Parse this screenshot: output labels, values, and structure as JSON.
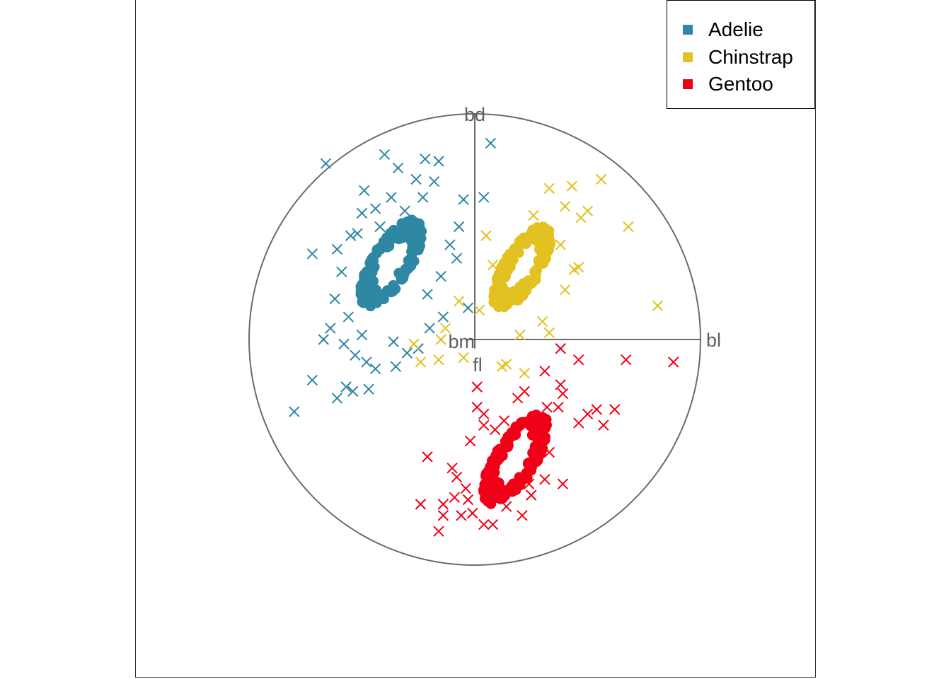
{
  "chart_data": {
    "type": "scatter",
    "title": "",
    "projection_axes": [
      {
        "name": "bl",
        "dx": 1.0,
        "dy": 0.0
      },
      {
        "name": "bd",
        "dx": 0.0,
        "dy": 1.0
      },
      {
        "name": "bm",
        "dx": -0.04,
        "dy": 0.0
      },
      {
        "name": "fl",
        "dx": 0.0,
        "dy": -0.04
      }
    ],
    "legend": {
      "position": "top-right",
      "entries": [
        "Adelie",
        "Chinstrap",
        "Gentoo"
      ]
    },
    "series": [
      {
        "name": "Adelie",
        "color": "#2E87A3",
        "core": {
          "cx": -0.37,
          "cy": 0.34,
          "rx": 0.085,
          "ry": 0.22,
          "angle_deg": 32,
          "count": 180
        },
        "outliers": [
          [
            -0.66,
            0.78
          ],
          [
            -0.4,
            0.82
          ],
          [
            -0.34,
            0.76
          ],
          [
            -0.22,
            0.8
          ],
          [
            -0.26,
            0.71
          ],
          [
            -0.16,
            0.79
          ],
          [
            -0.18,
            0.7
          ],
          [
            -0.49,
            0.66
          ],
          [
            -0.44,
            0.58
          ],
          [
            -0.31,
            0.57
          ],
          [
            -0.23,
            0.63
          ],
          [
            -0.05,
            0.62
          ],
          [
            -0.5,
            0.56
          ],
          [
            0.04,
            0.63
          ],
          [
            -0.72,
            0.38
          ],
          [
            -0.61,
            0.4
          ],
          [
            -0.55,
            0.46
          ],
          [
            -0.59,
            0.3
          ],
          [
            -0.07,
            0.5
          ],
          [
            -0.11,
            0.42
          ],
          [
            -0.15,
            0.28
          ],
          [
            -0.03,
            0.14
          ],
          [
            -0.67,
            0.0
          ],
          [
            -0.58,
            -0.02
          ],
          [
            -0.53,
            -0.07
          ],
          [
            -0.48,
            -0.1
          ],
          [
            -0.36,
            -0.01
          ],
          [
            -0.3,
            -0.06
          ],
          [
            -0.44,
            -0.13
          ],
          [
            -0.72,
            -0.18
          ],
          [
            -0.57,
            -0.21
          ],
          [
            -0.54,
            -0.23
          ],
          [
            -0.47,
            -0.22
          ],
          [
            -0.61,
            -0.26
          ],
          [
            -0.8,
            -0.32
          ],
          [
            -0.35,
            -0.12
          ],
          [
            -0.25,
            -0.04
          ],
          [
            -0.2,
            0.05
          ],
          [
            -0.14,
            0.1
          ],
          [
            -0.62,
            0.18
          ],
          [
            -0.56,
            0.1
          ],
          [
            0.07,
            0.87
          ],
          [
            -0.08,
            0.36
          ],
          [
            -0.21,
            0.2
          ],
          [
            -0.26,
            0.51
          ],
          [
            -0.37,
            0.63
          ],
          [
            -0.52,
            0.47
          ],
          [
            -0.42,
            0.5
          ],
          [
            -0.64,
            0.05
          ],
          [
            -0.5,
            0.02
          ]
        ]
      },
      {
        "name": "Chinstrap",
        "color": "#E2C121",
        "core": {
          "cx": 0.21,
          "cy": 0.32,
          "rx": 0.08,
          "ry": 0.21,
          "angle_deg": 32,
          "count": 180
        },
        "outliers": [
          [
            0.43,
            0.68
          ],
          [
            0.56,
            0.71
          ],
          [
            0.33,
            0.67
          ],
          [
            0.26,
            0.55
          ],
          [
            0.4,
            0.59
          ],
          [
            0.47,
            0.54
          ],
          [
            0.5,
            0.57
          ],
          [
            0.68,
            0.5
          ],
          [
            0.05,
            0.46
          ],
          [
            0.08,
            0.33
          ],
          [
            0.46,
            0.32
          ],
          [
            0.44,
            0.31
          ],
          [
            0.4,
            0.22
          ],
          [
            0.81,
            0.15
          ],
          [
            0.02,
            0.13
          ],
          [
            -0.07,
            0.17
          ],
          [
            -0.13,
            0.05
          ],
          [
            -0.16,
            -0.09
          ],
          [
            -0.24,
            -0.1
          ],
          [
            -0.15,
            0.0
          ],
          [
            0.2,
            0.02
          ],
          [
            0.33,
            0.03
          ],
          [
            0.14,
            -0.11
          ],
          [
            0.12,
            -0.12
          ],
          [
            0.22,
            -0.15
          ],
          [
            -0.05,
            -0.08
          ],
          [
            -0.27,
            -0.02
          ],
          [
            0.38,
            0.42
          ],
          [
            0.11,
            0.22
          ],
          [
            0.3,
            0.08
          ]
        ]
      },
      {
        "name": "Gentoo",
        "color": "#F00017",
        "core": {
          "cx": 0.18,
          "cy": -0.53,
          "rx": 0.09,
          "ry": 0.23,
          "angle_deg": 32,
          "count": 180
        },
        "outliers": [
          [
            0.38,
            -0.04
          ],
          [
            0.46,
            -0.09
          ],
          [
            0.67,
            -0.09
          ],
          [
            0.88,
            -0.1
          ],
          [
            0.31,
            -0.14
          ],
          [
            0.38,
            -0.2
          ],
          [
            0.39,
            -0.24
          ],
          [
            0.22,
            -0.23
          ],
          [
            0.01,
            -0.21
          ],
          [
            0.37,
            -0.3
          ],
          [
            0.32,
            -0.3
          ],
          [
            0.19,
            -0.26
          ],
          [
            0.01,
            -0.3
          ],
          [
            0.04,
            -0.33
          ],
          [
            0.5,
            -0.33
          ],
          [
            0.54,
            -0.31
          ],
          [
            0.62,
            -0.31
          ],
          [
            0.46,
            -0.37
          ],
          [
            0.57,
            -0.38
          ],
          [
            0.04,
            -0.38
          ],
          [
            -0.21,
            -0.52
          ],
          [
            -0.1,
            -0.57
          ],
          [
            -0.08,
            -0.61
          ],
          [
            -0.04,
            -0.66
          ],
          [
            0.31,
            -0.62
          ],
          [
            0.39,
            -0.64
          ],
          [
            -0.24,
            -0.73
          ],
          [
            -0.14,
            -0.73
          ],
          [
            -0.09,
            -0.7
          ],
          [
            -0.14,
            -0.78
          ],
          [
            -0.06,
            -0.78
          ],
          [
            -0.01,
            -0.77
          ],
          [
            0.08,
            -0.82
          ],
          [
            0.14,
            -0.74
          ],
          [
            -0.16,
            -0.85
          ],
          [
            0.04,
            -0.82
          ],
          [
            0.25,
            -0.69
          ],
          [
            0.24,
            -0.64
          ],
          [
            0.33,
            -0.5
          ],
          [
            -0.02,
            -0.45
          ],
          [
            0.09,
            -0.4
          ],
          [
            0.13,
            -0.36
          ],
          [
            0.28,
            -0.46
          ],
          [
            0.21,
            -0.78
          ],
          [
            -0.03,
            -0.71
          ]
        ]
      }
    ]
  }
}
